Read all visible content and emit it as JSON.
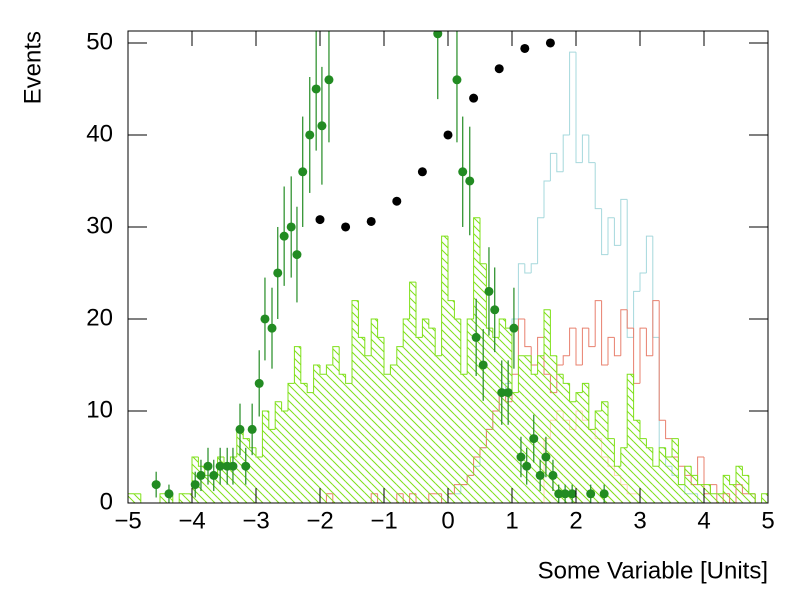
{
  "chart_data": {
    "type": "histogram",
    "xlabel": "Some Variable [Units]",
    "ylabel": "Events",
    "xlim": [
      -5,
      5
    ],
    "ylim": [
      0,
      51.3
    ],
    "xticks": [
      {
        "value": -5,
        "label": "−5"
      },
      {
        "value": -4,
        "label": "−4"
      },
      {
        "value": -3,
        "label": "−3"
      },
      {
        "value": -2,
        "label": "−2"
      },
      {
        "value": -1,
        "label": "−1"
      },
      0,
      1,
      2,
      3,
      4,
      5
    ],
    "yticks": [
      0,
      10,
      20,
      30,
      40,
      50
    ],
    "bins": [
      -5,
      -4.9,
      -4.8,
      -4.7,
      -4.6,
      -4.5,
      -4.4,
      -4.3,
      -4.2,
      -4.1,
      -4,
      -3.9,
      -3.8,
      -3.7,
      -3.6,
      -3.5,
      -3.4,
      -3.3,
      -3.2,
      -3.1,
      -3,
      -2.9,
      -2.8,
      -2.7,
      -2.6,
      -2.5,
      -2.4,
      -2.3,
      -2.2,
      -2.1,
      -2,
      -1.9,
      -1.8,
      -1.7,
      -1.6,
      -1.5,
      -1.4,
      -1.3,
      -1.2,
      -1.1,
      -1,
      -0.9,
      -0.8,
      -0.7,
      -0.6,
      -0.5,
      -0.4,
      -0.3,
      -0.2,
      -0.1,
      0,
      0.1,
      0.2,
      0.3,
      0.4,
      0.5,
      0.6,
      0.7,
      0.8,
      0.9,
      1,
      1.1,
      1.2,
      1.3,
      1.4,
      1.5,
      1.6,
      1.7,
      1.8,
      1.9,
      2,
      2.1,
      2.2,
      2.3,
      2.4,
      2.5,
      2.6,
      2.7,
      2.8,
      2.9,
      3,
      3.1,
      3.2,
      3.3,
      3.4,
      3.5,
      3.6,
      3.7,
      3.8,
      3.9,
      4,
      4.1,
      4.2,
      4.3,
      4.4,
      4.5,
      4.6,
      4.7,
      4.8,
      4.9,
      5
    ],
    "series": [
      {
        "style": "step",
        "color": "#a6d8dc",
        "values": [
          0,
          0,
          0,
          0,
          0,
          0,
          0,
          0,
          0,
          0,
          0,
          0,
          0,
          0,
          0,
          0,
          0,
          0,
          0,
          0,
          0,
          0,
          0,
          0,
          0,
          0,
          0,
          0,
          0,
          0,
          0,
          0,
          0,
          0,
          0,
          0,
          0,
          0,
          0,
          0,
          0,
          0,
          0,
          0,
          0,
          0,
          0,
          0,
          0,
          0,
          1,
          1,
          2,
          3,
          4,
          6,
          8,
          10,
          12,
          13,
          20,
          26,
          25,
          26,
          31,
          35,
          38,
          36,
          40,
          49,
          37,
          40,
          37,
          32,
          27,
          31,
          28,
          33,
          18,
          23,
          25,
          29,
          18,
          6,
          4,
          3,
          2,
          1,
          1,
          0,
          0,
          0,
          0,
          0,
          0,
          0,
          0,
          0,
          0,
          0
        ]
      },
      {
        "style": "step",
        "color": "#e8806e",
        "values": [
          0,
          0,
          0,
          0,
          0,
          0,
          0,
          0,
          0,
          0,
          0,
          0,
          0,
          0,
          0,
          0,
          0,
          0,
          0,
          0,
          0,
          0,
          0,
          0,
          0,
          0,
          0,
          0,
          0,
          0,
          0,
          1,
          0,
          0,
          0,
          0,
          0,
          0,
          1,
          0,
          0,
          0,
          1,
          0,
          1,
          0,
          0,
          1,
          1,
          0,
          1,
          2,
          2,
          3,
          5,
          6,
          8,
          10,
          12,
          11,
          14,
          20,
          17,
          15,
          18,
          14,
          12,
          15,
          16,
          19,
          15,
          19,
          17,
          22,
          15,
          18,
          16,
          21,
          19,
          13,
          19,
          16,
          22,
          9,
          7,
          5,
          4,
          3,
          2,
          5,
          1,
          2,
          0,
          1,
          0,
          2,
          1,
          1,
          0,
          0
        ]
      },
      {
        "style": "hatched",
        "color": "#ffd6b8",
        "values": [
          0,
          0,
          0,
          0,
          0,
          0,
          0,
          0,
          0,
          0,
          0,
          0,
          0,
          0,
          0,
          0,
          0,
          0,
          0,
          0,
          0,
          0,
          0,
          0,
          0,
          0,
          0,
          0,
          0,
          0,
          0,
          0,
          0,
          0,
          0,
          0,
          0,
          0,
          0,
          0,
          0,
          0,
          0,
          0,
          0,
          0,
          0,
          0,
          0,
          0,
          0,
          0,
          0,
          0,
          0,
          0,
          0,
          0,
          0,
          0,
          0,
          0,
          0,
          0,
          0,
          7,
          9,
          10,
          9,
          8,
          10,
          9,
          8,
          7,
          5,
          4,
          3,
          2,
          1,
          1,
          0,
          0,
          0,
          0,
          0,
          0,
          0,
          0,
          0,
          0,
          0,
          0,
          0,
          0,
          0,
          0,
          0,
          0,
          0,
          0
        ]
      },
      {
        "style": "hatched",
        "color": "#7fe01a",
        "values": [
          1,
          1,
          0,
          0,
          0,
          1,
          1,
          0,
          1,
          1,
          5,
          4,
          3,
          3,
          5,
          4,
          5,
          8,
          7,
          6,
          5,
          10,
          8,
          11,
          10,
          13,
          17,
          13,
          12,
          15,
          14,
          15,
          17,
          14,
          13,
          22,
          18,
          16,
          20,
          18,
          14,
          15,
          17,
          20,
          24,
          18,
          20,
          19,
          16,
          29,
          22,
          20,
          14,
          20,
          31,
          26,
          19,
          18,
          20,
          19,
          12,
          16,
          16,
          14,
          16,
          21,
          16,
          14,
          13,
          11,
          12,
          13,
          8,
          10,
          11,
          7,
          4,
          6,
          14,
          9,
          7,
          6,
          4,
          6,
          5,
          7,
          2,
          4,
          3,
          2,
          2,
          1,
          1,
          3,
          2,
          4,
          3,
          1,
          0,
          1
        ]
      }
    ],
    "points": [
      {
        "color": "#000000",
        "x": [
          -2,
          -1.6,
          -1.2,
          -0.8,
          -0.4,
          0,
          0.4,
          0.8,
          1.2,
          1.6
        ],
        "values": [
          30.8,
          30,
          30.6,
          32.8,
          36,
          40,
          44,
          47.2,
          49.4,
          50
        ]
      },
      {
        "color": "#228b22",
        "x": [
          -4.56,
          -4.36,
          -3.95,
          -3.86,
          -3.75,
          -3.66,
          -3.56,
          -3.45,
          -3.36,
          -3.25,
          -3.16,
          -3.06,
          -2.95,
          -2.86,
          -2.75,
          -2.66,
          -2.56,
          -2.45,
          -2.36,
          -2.27,
          -2.16,
          -2.06,
          -1.97,
          -1.86,
          -0.16,
          0.14,
          0.23,
          0.34,
          0.44,
          0.55,
          0.64,
          0.73,
          0.84,
          0.94,
          1.03,
          1.14,
          1.23,
          1.34,
          1.44,
          1.53,
          1.64,
          1.73,
          1.83,
          1.94,
          2.23,
          2.44
        ],
        "values": [
          2,
          1,
          2,
          3,
          4,
          3,
          4,
          4,
          4,
          8,
          4,
          8,
          13,
          20,
          19,
          25,
          29,
          30,
          27,
          36,
          40,
          45,
          41,
          46,
          51,
          46,
          36,
          35,
          18,
          15,
          23,
          21,
          12,
          12,
          19,
          5,
          4,
          7,
          3,
          5,
          3,
          1,
          1,
          1,
          1,
          1
        ],
        "errors": [
          1.4,
          1,
          1.4,
          1.7,
          2,
          1.7,
          2,
          2,
          2,
          2.8,
          2,
          2.8,
          3.6,
          4.5,
          4.4,
          5,
          5.4,
          5.5,
          5.2,
          6,
          6.3,
          6.7,
          6.4,
          6.8,
          7.1,
          6.8,
          6,
          5.9,
          4.2,
          3.9,
          4.8,
          4.6,
          3.5,
          3.5,
          4.4,
          2.2,
          2,
          2.6,
          1.7,
          2.2,
          1.7,
          1,
          1,
          1,
          1,
          1
        ]
      }
    ]
  }
}
